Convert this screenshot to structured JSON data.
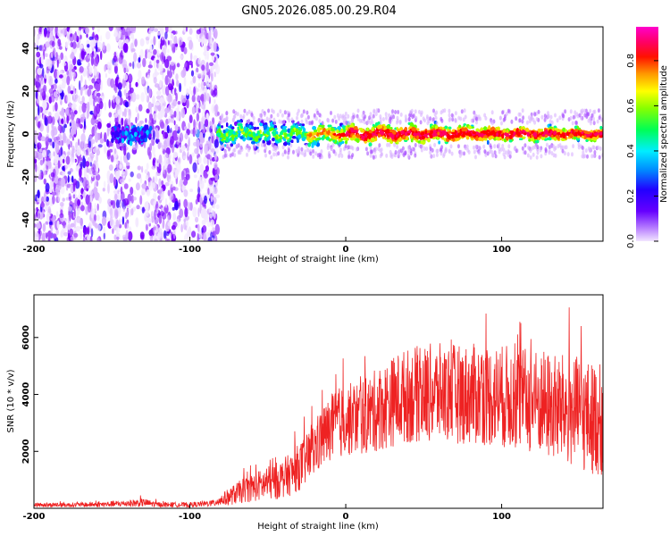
{
  "figure_title": "GN05.2026.085.00.29.R04",
  "colors": {
    "snr_line": "#ee2222",
    "colormap": [
      "#f2e6ff",
      "#d9b3ff",
      "#a64dff",
      "#7a00ff",
      "#3300ff",
      "#0066ff",
      "#00ccff",
      "#00ff88",
      "#66ff00",
      "#ccff00",
      "#ffcc00",
      "#ff6600",
      "#ff0000",
      "#ff0066",
      "#ff00cc"
    ]
  },
  "chart_data": [
    {
      "type": "heatmap",
      "title": "",
      "xlabel": "Height of straight line (km)",
      "ylabel": "Frequency (Hz)",
      "xlim": [
        -200,
        165
      ],
      "ylim": [
        -50,
        50
      ],
      "x_ticks": [
        -200,
        -100,
        0,
        100
      ],
      "x_tick_labels": [
        "-200",
        "-100",
        "0",
        "100"
      ],
      "y_ticks": [
        -40,
        -20,
        0,
        20,
        40
      ],
      "y_tick_labels": [
        "-40",
        "-20",
        "0",
        "20",
        "40"
      ],
      "colorbar": {
        "label": "Normalized spectral amplitude",
        "range": [
          0.0,
          0.95
        ],
        "ticks": [
          0.0,
          0.2,
          0.4,
          0.6,
          0.8
        ],
        "tick_labels": [
          "0.0",
          "0.2",
          "0.4",
          "0.6",
          "0.8"
        ]
      },
      "description_points": {
        "noise_region_km": [
          -200,
          -82
        ],
        "signal_band_center_hz": 0,
        "signal_band_halfwidth_hz": [
          6,
          3
        ],
        "peak_amplitude_start_km": 0
      }
    },
    {
      "type": "line",
      "title": "",
      "xlabel": "Height of straight line (km)",
      "ylabel": "SNR (10 * v/v)",
      "xlim": [
        -200,
        165
      ],
      "ylim": [
        0,
        7500
      ],
      "x_ticks": [
        -200,
        -100,
        0,
        100
      ],
      "x_tick_labels": [
        "-200",
        "-100",
        "0",
        "100"
      ],
      "y_ticks": [
        2000,
        4000,
        6000
      ],
      "y_tick_labels": [
        "2000",
        "4000",
        "6000"
      ],
      "series": [
        {
          "name": "SNR",
          "x": [
            -200,
            -180,
            -160,
            -140,
            -130,
            -120,
            -100,
            -85,
            -75,
            -65,
            -55,
            -45,
            -35,
            -25,
            -15,
            -5,
            5,
            15,
            25,
            35,
            45,
            55,
            65,
            75,
            85,
            95,
            105,
            115,
            125,
            135,
            145,
            155,
            165
          ],
          "mean": [
            120,
            120,
            130,
            170,
            200,
            130,
            120,
            180,
            400,
            650,
            800,
            950,
            1200,
            1700,
            2500,
            3000,
            3150,
            3300,
            3600,
            3900,
            4000,
            4050,
            4050,
            4000,
            4000,
            3950,
            3900,
            3800,
            3700,
            3500,
            3400,
            3200,
            3100
          ],
          "spread": [
            80,
            80,
            90,
            120,
            150,
            90,
            80,
            120,
            300,
            450,
            550,
            650,
            750,
            900,
            1100,
            1250,
            1300,
            1400,
            1550,
            1650,
            1700,
            1750,
            1750,
            1750,
            1800,
            1800,
            1850,
            1850,
            1900,
            1950,
            2000,
            2000,
            2000
          ]
        }
      ]
    }
  ]
}
